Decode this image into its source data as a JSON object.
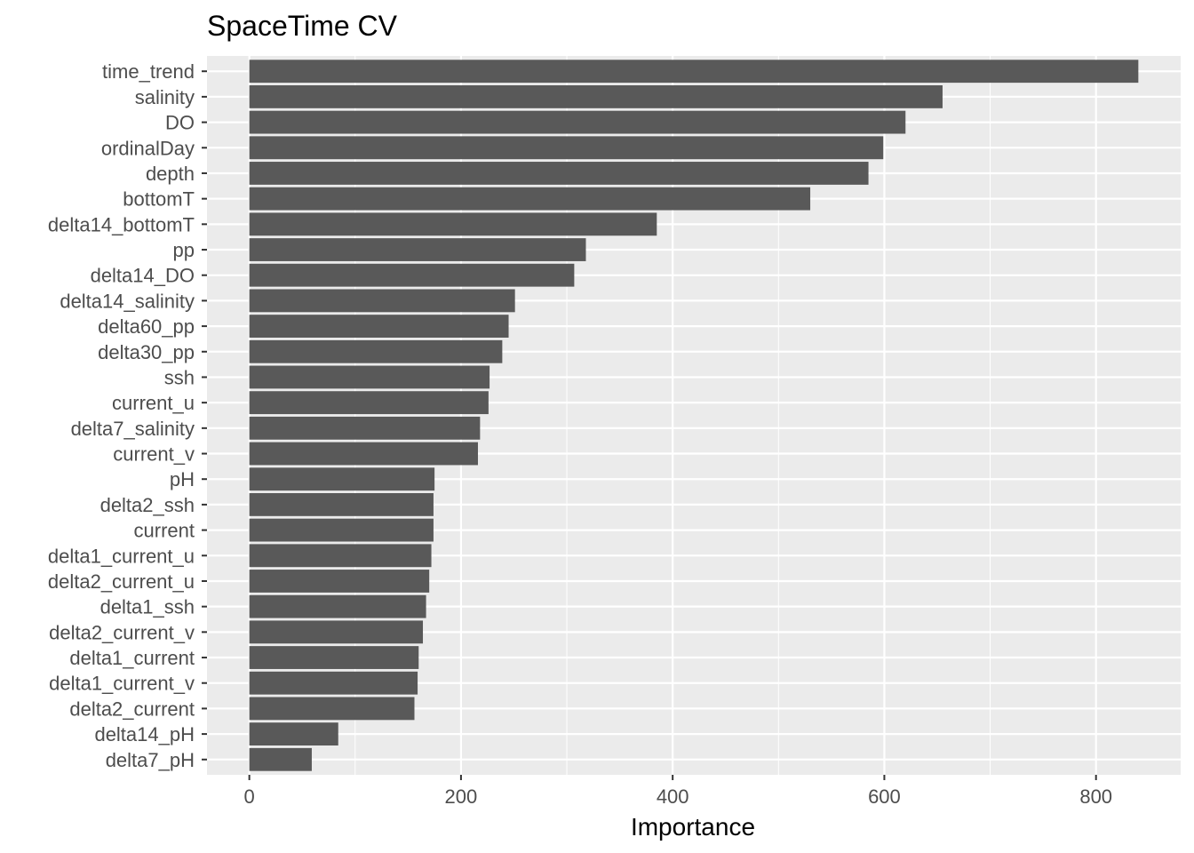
{
  "chart_data": {
    "type": "bar",
    "orientation": "horizontal",
    "title": "SpaceTime CV",
    "xlabel": "Importance",
    "ylabel": "",
    "xlim": [
      -40,
      880
    ],
    "xticks": [
      0,
      200,
      400,
      600,
      800
    ],
    "grid": true,
    "legend": "none",
    "colors": {
      "bar": "#595959",
      "panel_background": "#ebebeb",
      "grid_major": "#ffffff",
      "tick_label": "#4d4d4d"
    },
    "categories": [
      "time_trend",
      "salinity",
      "DO",
      "ordinalDay",
      "depth",
      "bottomT",
      "delta14_bottomT",
      "pp",
      "delta14_DO",
      "delta14_salinity",
      "delta60_pp",
      "delta30_pp",
      "ssh",
      "current_u",
      "delta7_salinity",
      "current_v",
      "pH",
      "delta2_ssh",
      "current",
      "delta1_current_u",
      "delta2_current_u",
      "delta1_ssh",
      "delta2_current_v",
      "delta1_current",
      "delta1_current_v",
      "delta2_current",
      "delta14_pH",
      "delta7_pH"
    ],
    "values": [
      840,
      655,
      620,
      599,
      585,
      530,
      385,
      318,
      307,
      251,
      245,
      239,
      227,
      226,
      218,
      216,
      175,
      174,
      174,
      172,
      170,
      167,
      164,
      160,
      159,
      156,
      84,
      59
    ]
  }
}
